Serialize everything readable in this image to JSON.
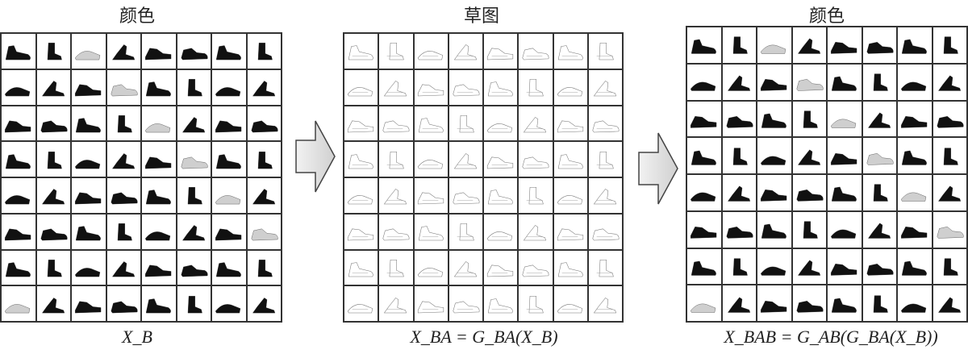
{
  "panels": [
    {
      "title": "颜色",
      "caption": "X_B",
      "style": "color"
    },
    {
      "title": "草图",
      "caption": "X_BA = G_BA(X_B)",
      "style": "sketch"
    },
    {
      "title": "颜色",
      "caption": "X_BAB = G_AB(G_BA(X_B))",
      "style": "color"
    }
  ],
  "grid": {
    "rows": 8,
    "cols": 8
  },
  "icons": {
    "cell": "shoe-icon",
    "arrow": "right-arrow-icon"
  }
}
